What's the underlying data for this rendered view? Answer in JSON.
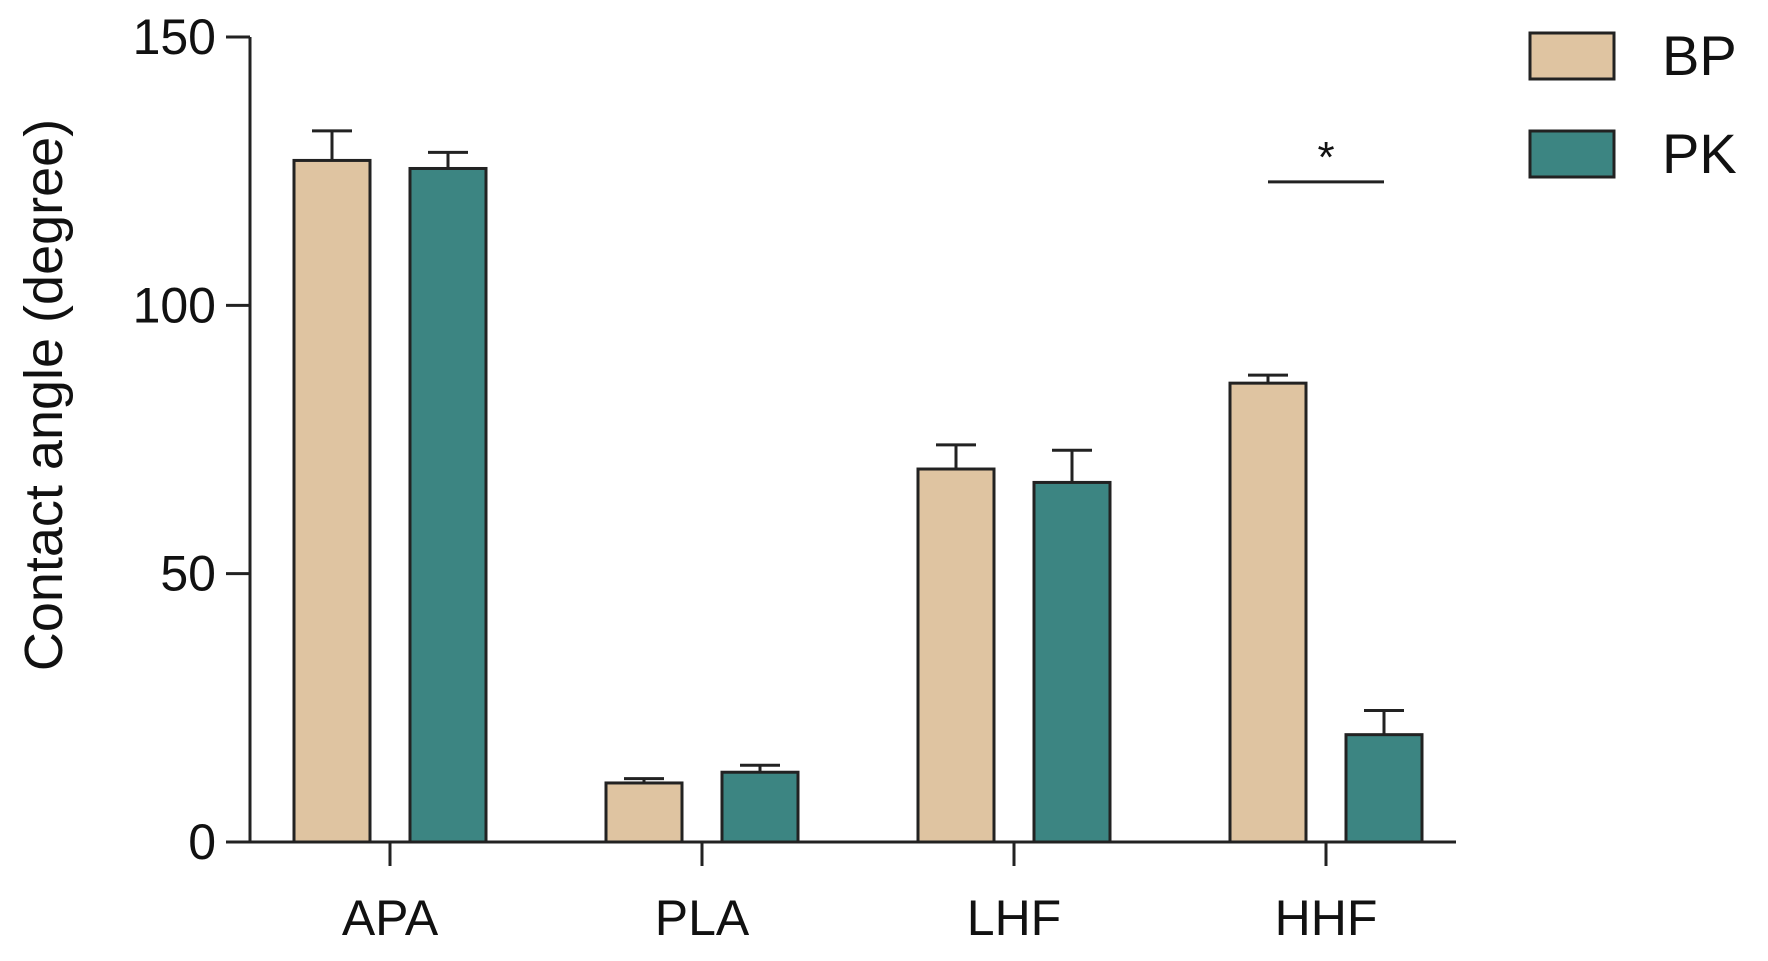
{
  "chart_data": {
    "type": "bar",
    "title": "",
    "xlabel": "",
    "ylabel": "Contact angle (degree)",
    "ylim": [
      0,
      150
    ],
    "yticks": [
      0,
      50,
      100,
      150
    ],
    "grid": false,
    "legend_position": "top-right",
    "categories": [
      "APA",
      "PLA",
      "LHF",
      "HHF"
    ],
    "series": [
      {
        "name": "BP",
        "color": "#dfc4a1",
        "values": [
          127,
          11,
          69.5,
          85.5
        ],
        "errors": [
          5.5,
          0.8,
          4.5,
          1.5
        ]
      },
      {
        "name": "PK",
        "color": "#3c8582",
        "values": [
          125.5,
          13,
          67,
          20
        ],
        "errors": [
          3,
          1.3,
          6,
          4.5
        ]
      }
    ],
    "annotations": [
      {
        "category": "HHF",
        "text": "*",
        "y": 123
      }
    ]
  }
}
